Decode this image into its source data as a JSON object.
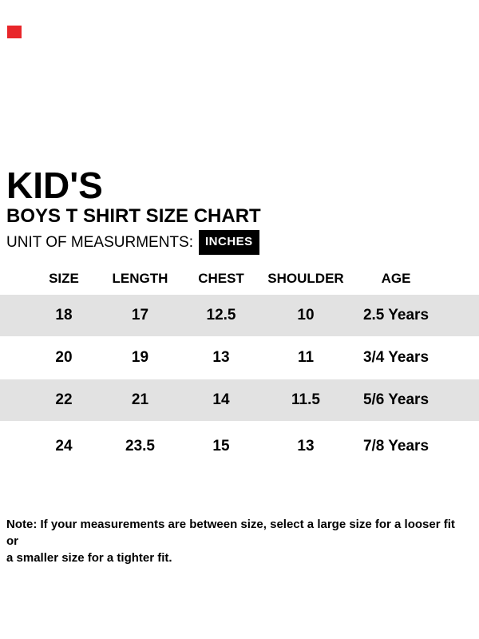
{
  "colors": {
    "brand_mark": "#e8262a",
    "stripe": "#e2e2e2",
    "badge_bg": "#000000",
    "badge_text": "#ffffff",
    "text": "#000000",
    "background": "#ffffff"
  },
  "header": {
    "title": "KID'S",
    "subtitle": "BOYS T SHIRT SIZE CHART",
    "unit_label": "UNIT OF MEASURMENTS:",
    "unit_value": "INCHES"
  },
  "table": {
    "columns": [
      "SIZE",
      "LENGTH",
      "CHEST",
      "SHOULDER",
      "AGE"
    ],
    "rows": [
      {
        "size": "18",
        "length": "17",
        "chest": "12.5",
        "shoulder": "10",
        "age": "2.5 Years"
      },
      {
        "size": "20",
        "length": "19",
        "chest": "13",
        "shoulder": "11",
        "age": "3/4 Years"
      },
      {
        "size": "22",
        "length": "21",
        "chest": "14",
        "shoulder": "11.5",
        "age": "5/6 Years"
      },
      {
        "size": "24",
        "length": "23.5",
        "chest": "15",
        "shoulder": "13",
        "age": "7/8 Years"
      }
    ]
  },
  "note": {
    "lines": [
      "Note: If your measurements are between size, select a large size for a looser fit or",
      "a smaller size for a tighter fit."
    ]
  }
}
